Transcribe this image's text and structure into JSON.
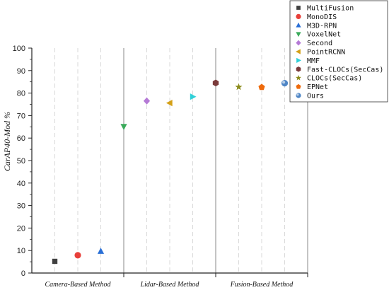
{
  "chart_data": {
    "type": "scatter",
    "title": "",
    "xlabel": "",
    "ylabel": "CarAP40-Mod %",
    "ylim": [
      0,
      100
    ],
    "yticks": [
      "0",
      "10",
      "20",
      "30",
      "40",
      "50",
      "60",
      "70",
      "80",
      "90",
      "100"
    ],
    "groups": [
      "Camera-Based Method",
      "Lidar-Based Method",
      "Fusion-Based Method"
    ],
    "legend_position": "top-right",
    "series": [
      {
        "name": "MultiFusion",
        "x": 1,
        "y": 5.2,
        "marker": "square",
        "color": "#404040"
      },
      {
        "name": "MonoDIS",
        "x": 2,
        "y": 7.9,
        "marker": "circle",
        "color": "#e8403a"
      },
      {
        "name": "M3D-RPN",
        "x": 3,
        "y": 9.7,
        "marker": "triangle-up",
        "color": "#2a6fd6"
      },
      {
        "name": "VoxelNet",
        "x": 4,
        "y": 65.1,
        "marker": "triangle-down",
        "color": "#3aaa5a"
      },
      {
        "name": "Second",
        "x": 5,
        "y": 76.5,
        "marker": "diamond",
        "color": "#b57ad6"
      },
      {
        "name": "PointRCNN",
        "x": 6,
        "y": 75.6,
        "marker": "triangle-left",
        "color": "#d4a017"
      },
      {
        "name": "MMF",
        "x": 7,
        "y": 78.4,
        "marker": "triangle-right",
        "color": "#2fd0d8"
      },
      {
        "name": "Fast-CLOCs(SecCas)",
        "x": 8,
        "y": 84.5,
        "marker": "hexagon",
        "color": "#7a3a3a"
      },
      {
        "name": "CLOCs(SecCas)",
        "x": 9,
        "y": 82.7,
        "marker": "star",
        "color": "#8a8a1a"
      },
      {
        "name": "EPNet",
        "x": 10,
        "y": 82.6,
        "marker": "pentagon",
        "color": "#ee6a0c"
      },
      {
        "name": "Ours",
        "x": 11,
        "y": 84.4,
        "marker": "sphere",
        "color": "#4f86c6"
      }
    ]
  }
}
